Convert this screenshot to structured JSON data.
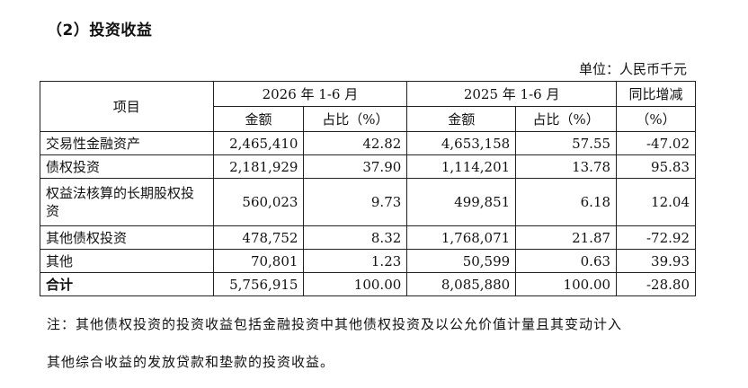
{
  "section_title": "（2）投资收益",
  "unit": "单位：人民币千元",
  "table": {
    "header": {
      "item": "项目",
      "period_a": "2026 年 1-6 月",
      "period_b": "2025 年 1-6 月",
      "change": "同比增减",
      "amount": "金额",
      "share": "占比（%）",
      "change_unit": "（%）"
    },
    "rows": [
      {
        "name": "交易性金融资产",
        "a_amount": "2,465,410",
        "a_share": "42.82",
        "b_amount": "4,653,158",
        "b_share": "57.55",
        "change": "-47.02"
      },
      {
        "name": "债权投资",
        "a_amount": "2,181,929",
        "a_share": "37.90",
        "b_amount": "1,114,201",
        "b_share": "13.78",
        "change": "95.83"
      },
      {
        "name": "权益法核算的长期股权投资",
        "a_amount": "560,023",
        "a_share": "9.73",
        "b_amount": "499,851",
        "b_share": "6.18",
        "change": "12.04"
      },
      {
        "name": "其他债权投资",
        "a_amount": "478,752",
        "a_share": "8.32",
        "b_amount": "1,768,071",
        "b_share": "21.87",
        "change": "-72.92"
      },
      {
        "name": "其他",
        "a_amount": "70,801",
        "a_share": "1.23",
        "b_amount": "50,599",
        "b_share": "0.63",
        "change": "39.93"
      },
      {
        "name": "合计",
        "a_amount": "5,756,915",
        "a_share": "100.00",
        "b_amount": "8,085,880",
        "b_share": "100.00",
        "change": "-28.80"
      }
    ]
  },
  "note_line1": "注：其他债权投资的投资收益包括金融投资中其他债权投资及以公允价值计量且其变动计入",
  "note_line2": "其他综合收益的发放贷款和垫款的投资收益。"
}
